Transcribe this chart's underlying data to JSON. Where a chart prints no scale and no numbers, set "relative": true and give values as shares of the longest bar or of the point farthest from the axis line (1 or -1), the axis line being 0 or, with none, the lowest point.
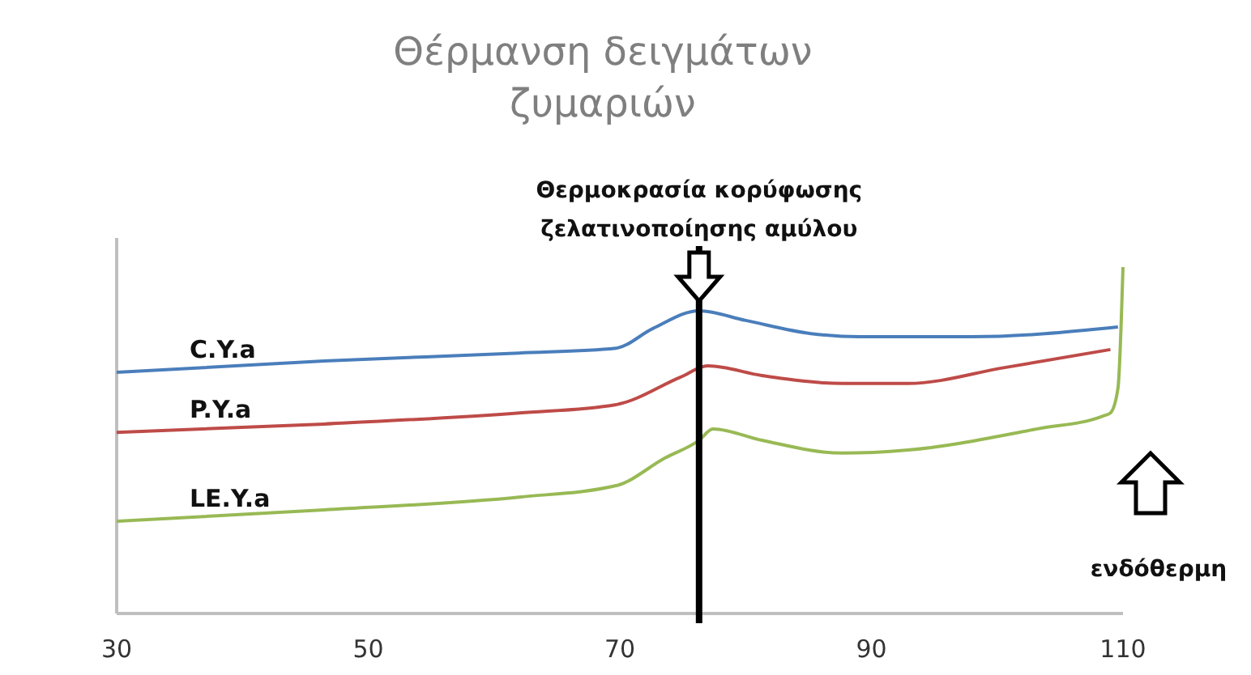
{
  "chart_data": {
    "type": "line",
    "title": "Θέρμανση δειγμάτων ζυμαριών",
    "relative": true,
    "xlim": [
      30,
      110
    ],
    "xticks": [
      30,
      50,
      70,
      90,
      110
    ],
    "grid": false,
    "marker": "none",
    "line_style": "solid",
    "series": [
      {
        "name": "C.Y.a",
        "color": "#4a7ebb",
        "x": [
          30,
          46.5,
          62,
          69.7,
          72.6,
          76.3,
          80,
          85.2,
          89,
          98,
          109.6
        ],
        "values": [
          0.696,
          0.729,
          0.752,
          0.766,
          0.822,
          0.874,
          0.846,
          0.808,
          0.799,
          0.799,
          0.827
        ]
      },
      {
        "name": "P.Y.a",
        "color": "#be4b48",
        "x": [
          30,
          46.5,
          62,
          69.7,
          74.8,
          77,
          81.3,
          87.7,
          92.9,
          100.6,
          109
        ],
        "values": [
          0.523,
          0.547,
          0.579,
          0.603,
          0.682,
          0.715,
          0.687,
          0.664,
          0.664,
          0.71,
          0.762
        ]
      },
      {
        "name": "LE.Y.a",
        "color": "#98b954",
        "x": [
          30,
          46.5,
          62,
          69.7,
          73.6,
          76.3,
          77.4,
          81.3,
          87.7,
          92.9,
          103.2,
          108.4,
          109,
          109.6,
          110
        ],
        "values": [
          0.266,
          0.299,
          0.336,
          0.369,
          0.449,
          0.5,
          0.533,
          0.5,
          0.463,
          0.472,
          0.533,
          0.57,
          0.579,
          0.65,
          1
        ]
      }
    ],
    "ref_lines": [
      {
        "axis": "x",
        "value": 76.3,
        "label": "Θερμοκρασία κορύφωσης ζελατινοποίησης αμύλου",
        "color": "#000000"
      }
    ],
    "annotations": [
      "ενδόθερμη"
    ]
  }
}
